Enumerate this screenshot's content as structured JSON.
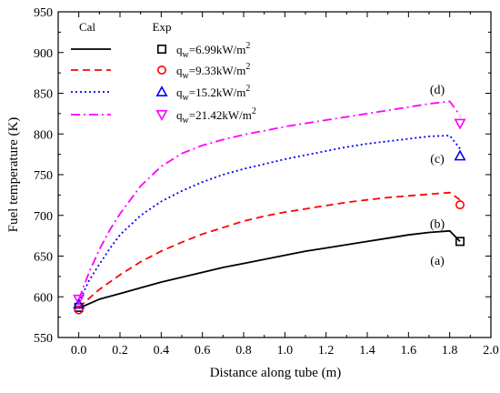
{
  "chart_data": {
    "type": "line",
    "title": "",
    "xlabel": "Distance along tube (m)",
    "ylabel": "Fuel temperature (K)",
    "xlim": [
      -0.1,
      2.0
    ],
    "ylim": [
      550,
      950
    ],
    "xticks": [
      0.0,
      0.2,
      0.4,
      0.6,
      0.8,
      1.0,
      1.2,
      1.4,
      1.6,
      1.8,
      2.0
    ],
    "xtick_labels": [
      "0.0",
      "0.2",
      "0.4",
      "0.6",
      "0.8",
      "1.0",
      "1.2",
      "1.4",
      "1.6",
      "1.8",
      "2.0"
    ],
    "yticks": [
      550,
      600,
      650,
      700,
      750,
      800,
      850,
      900,
      950
    ],
    "ytick_labels": [
      "550",
      "600",
      "650",
      "700",
      "750",
      "800",
      "850",
      "900",
      "950"
    ],
    "grid": false,
    "legend": {
      "placement": "top-left",
      "header_cal": "Cal",
      "header_exp": "Exp",
      "entries": [
        {
          "prefix": "q",
          "sub": "w",
          "mid": "=6.99kW/m",
          "sup": "2"
        },
        {
          "prefix": "q",
          "sub": "w",
          "mid": "=9.33kW/m",
          "sup": "2"
        },
        {
          "prefix": "q",
          "sub": "w",
          "mid": "=15.2kW/m",
          "sup": "2"
        },
        {
          "prefix": "q",
          "sub": "w",
          "mid": "=21.42kW/m",
          "sup": "2"
        }
      ]
    },
    "series": [
      {
        "color": "#000000",
        "dash": "solid",
        "marker": "square",
        "curve_label": "(a)",
        "label_at": [
          1.74,
          645
        ],
        "x": [
          0.0,
          0.1,
          0.2,
          0.3,
          0.4,
          0.5,
          0.6,
          0.7,
          0.8,
          0.9,
          1.0,
          1.1,
          1.2,
          1.3,
          1.4,
          1.5,
          1.6,
          1.7,
          1.8,
          1.85
        ],
        "y": [
          586,
          597,
          604,
          611,
          618,
          624,
          630,
          636,
          641,
          646,
          651,
          656,
          660,
          664,
          668,
          672,
          676,
          679,
          681,
          668
        ],
        "exp": [
          [
            0.0,
            587
          ],
          [
            1.85,
            668
          ]
        ]
      },
      {
        "color": "#ff0000",
        "dash": "dashed",
        "marker": "circle",
        "curve_label": "(b)",
        "label_at": [
          1.74,
          690
        ],
        "x": [
          0.0,
          0.1,
          0.2,
          0.3,
          0.4,
          0.5,
          0.6,
          0.7,
          0.8,
          0.9,
          1.0,
          1.1,
          1.2,
          1.3,
          1.4,
          1.5,
          1.6,
          1.7,
          1.8,
          1.85
        ],
        "y": [
          587,
          609,
          627,
          643,
          656,
          667,
          677,
          685,
          693,
          699,
          704,
          708,
          712,
          716,
          719,
          722,
          724,
          726,
          728,
          719
        ],
        "exp": [
          [
            0.0,
            584
          ],
          [
            1.85,
            713
          ]
        ]
      },
      {
        "color": "#0000ff",
        "dash": "dotted",
        "marker": "triangle-up",
        "curve_label": "(c)",
        "label_at": [
          1.74,
          770
        ],
        "x": [
          0.0,
          0.05,
          0.1,
          0.15,
          0.2,
          0.3,
          0.4,
          0.5,
          0.6,
          0.7,
          0.8,
          0.9,
          1.0,
          1.1,
          1.2,
          1.3,
          1.4,
          1.5,
          1.6,
          1.7,
          1.8,
          1.85
        ],
        "y": [
          593,
          620,
          640,
          659,
          676,
          700,
          717,
          730,
          741,
          750,
          757,
          763,
          769,
          774,
          779,
          784,
          788,
          791,
          794,
          797,
          798,
          782
        ],
        "exp": [
          [
            0.0,
            591
          ],
          [
            1.85,
            773
          ]
        ]
      },
      {
        "color": "#ff00ff",
        "dash": "dashdot",
        "marker": "triangle-down",
        "curve_label": "(d)",
        "label_at": [
          1.74,
          855
        ],
        "x": [
          0.0,
          0.05,
          0.1,
          0.15,
          0.2,
          0.3,
          0.4,
          0.5,
          0.6,
          0.7,
          0.8,
          0.9,
          1.0,
          1.1,
          1.2,
          1.3,
          1.4,
          1.5,
          1.6,
          1.7,
          1.8,
          1.85
        ],
        "y": [
          597,
          630,
          658,
          682,
          702,
          736,
          760,
          776,
          786,
          793,
          799,
          804,
          809,
          813,
          817,
          821,
          825,
          829,
          833,
          837,
          840,
          823
        ],
        "exp": [
          [
            0.0,
            597
          ],
          [
            1.85,
            813
          ]
        ]
      }
    ]
  }
}
